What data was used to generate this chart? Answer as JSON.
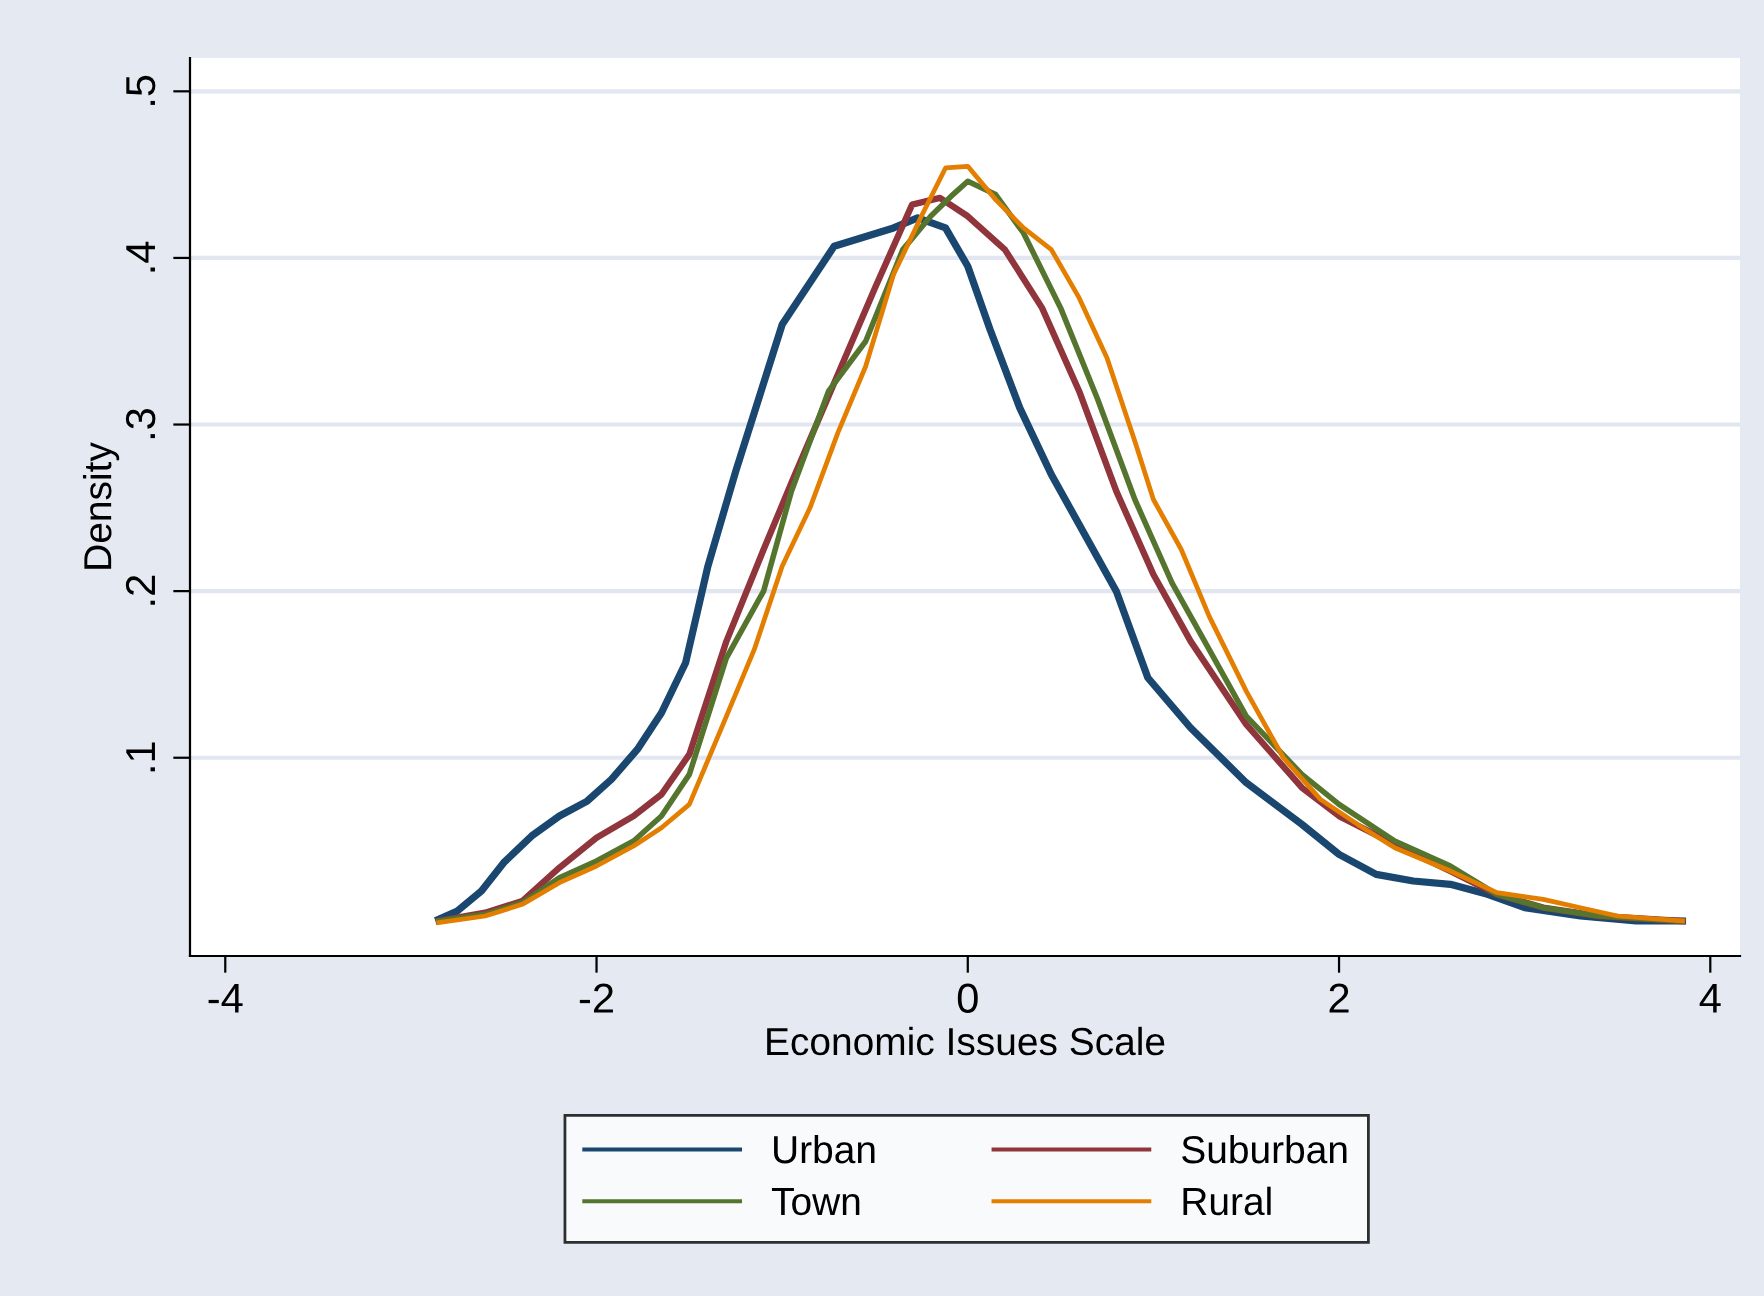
{
  "chart_data": {
    "type": "line",
    "xlabel": "Economic Issues Scale",
    "ylabel": "Density",
    "xlim": [
      -4.19,
      4.16
    ],
    "ylim": [
      -0.019,
      0.52
    ],
    "xticks": [
      -4,
      -2,
      0,
      2,
      4
    ],
    "yticks": [
      {
        "value": 0.1,
        "label": ".1"
      },
      {
        "value": 0.2,
        "label": ".2"
      },
      {
        "value": 0.3,
        "label": ".3"
      },
      {
        "value": 0.4,
        "label": ".4"
      },
      {
        "value": 0.5,
        "label": ".5"
      }
    ],
    "grid": "y",
    "legend": "bottom",
    "marker": "none",
    "line_style": "solid",
    "series": [
      {
        "name": "Urban",
        "color": "#1a476f",
        "x": [
          -2.85,
          -2.75,
          -2.62,
          -2.5,
          -2.35,
          -2.2,
          -2.05,
          -1.92,
          -1.78,
          -1.65,
          -1.52,
          -1.4,
          -1.25,
          -1.0,
          -0.72,
          -0.4,
          -0.27,
          -0.12,
          0.0,
          0.12,
          0.28,
          0.45,
          0.8,
          0.97,
          1.2,
          1.5,
          1.8,
          2.0,
          2.2,
          2.4,
          2.6,
          2.8,
          3.0,
          3.3,
          3.6,
          3.85
        ],
        "values": [
          0.003,
          0.008,
          0.02,
          0.037,
          0.053,
          0.065,
          0.074,
          0.087,
          0.105,
          0.127,
          0.157,
          0.215,
          0.272,
          0.36,
          0.407,
          0.418,
          0.424,
          0.418,
          0.395,
          0.357,
          0.31,
          0.27,
          0.2,
          0.148,
          0.118,
          0.085,
          0.06,
          0.042,
          0.03,
          0.026,
          0.024,
          0.018,
          0.01,
          0.005,
          0.002,
          0.002
        ]
      },
      {
        "name": "Suburban",
        "color": "#90353b",
        "x": [
          -2.85,
          -2.6,
          -2.4,
          -2.2,
          -2.0,
          -1.8,
          -1.65,
          -1.5,
          -1.3,
          -1.1,
          -0.95,
          -0.7,
          -0.5,
          -0.3,
          -0.15,
          0.0,
          0.2,
          0.4,
          0.6,
          0.8,
          1.0,
          1.2,
          1.5,
          1.8,
          2.0,
          2.3,
          2.6,
          2.85,
          3.1,
          3.4,
          3.85
        ],
        "values": [
          0.002,
          0.007,
          0.014,
          0.034,
          0.052,
          0.065,
          0.078,
          0.102,
          0.17,
          0.225,
          0.265,
          0.33,
          0.382,
          0.432,
          0.436,
          0.425,
          0.405,
          0.37,
          0.32,
          0.26,
          0.21,
          0.17,
          0.12,
          0.082,
          0.065,
          0.048,
          0.032,
          0.018,
          0.01,
          0.005,
          0.002
        ]
      },
      {
        "name": "Town",
        "color": "#55752f",
        "x": [
          -2.85,
          -2.6,
          -2.4,
          -2.2,
          -2.0,
          -1.8,
          -1.65,
          -1.5,
          -1.3,
          -1.1,
          -0.95,
          -0.75,
          -0.55,
          -0.35,
          -0.2,
          -0.08,
          0.0,
          0.15,
          0.3,
          0.5,
          0.7,
          0.9,
          1.1,
          1.3,
          1.5,
          1.8,
          2.0,
          2.3,
          2.6,
          2.85,
          3.1,
          3.4,
          3.85
        ],
        "values": [
          0.002,
          0.006,
          0.013,
          0.028,
          0.038,
          0.05,
          0.065,
          0.09,
          0.16,
          0.2,
          0.26,
          0.32,
          0.35,
          0.405,
          0.425,
          0.438,
          0.446,
          0.438,
          0.415,
          0.37,
          0.315,
          0.255,
          0.205,
          0.165,
          0.125,
          0.09,
          0.072,
          0.05,
          0.035,
          0.018,
          0.01,
          0.005,
          0.002
        ]
      },
      {
        "name": "Rural",
        "color": "#e37e00",
        "x": [
          -2.85,
          -2.6,
          -2.4,
          -2.2,
          -2.0,
          -1.8,
          -1.65,
          -1.5,
          -1.3,
          -1.15,
          -1.0,
          -0.85,
          -0.7,
          -0.55,
          -0.4,
          -0.25,
          -0.12,
          0.0,
          0.15,
          0.3,
          0.45,
          0.6,
          0.75,
          0.9,
          1.0,
          1.15,
          1.3,
          1.5,
          1.7,
          1.9,
          2.1,
          2.3,
          2.6,
          2.85,
          3.1,
          3.3,
          3.5,
          3.85
        ],
        "values": [
          0.001,
          0.005,
          0.012,
          0.025,
          0.035,
          0.047,
          0.058,
          0.072,
          0.125,
          0.165,
          0.215,
          0.25,
          0.295,
          0.335,
          0.39,
          0.425,
          0.454,
          0.455,
          0.435,
          0.418,
          0.405,
          0.376,
          0.34,
          0.29,
          0.255,
          0.225,
          0.185,
          0.14,
          0.1,
          0.075,
          0.06,
          0.046,
          0.032,
          0.019,
          0.015,
          0.01,
          0.005,
          0.002
        ]
      }
    ]
  }
}
